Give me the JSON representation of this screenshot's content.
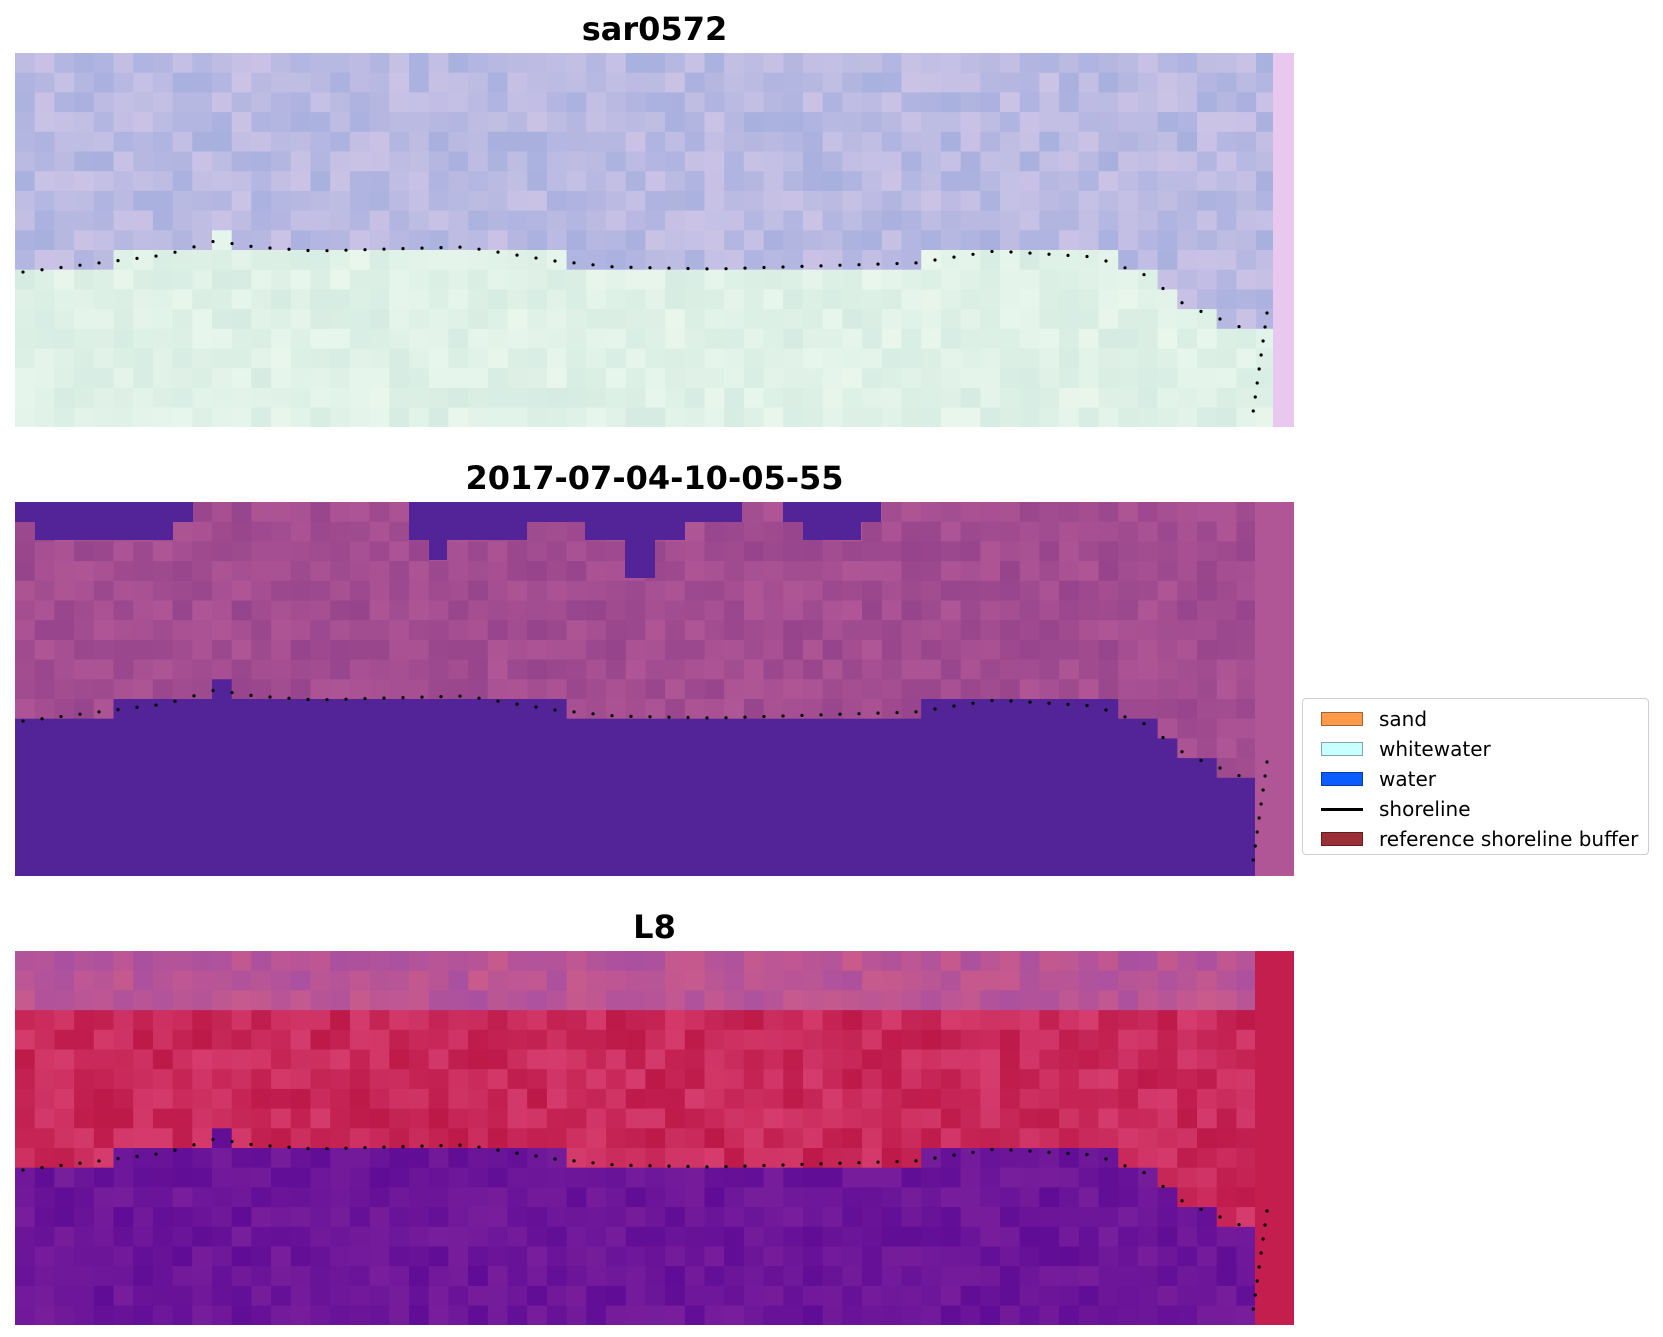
{
  "panels": [
    {
      "title": "sar0572"
    },
    {
      "title": "2017-07-04-10-05-55"
    },
    {
      "title": "L8"
    }
  ],
  "legend": {
    "items": [
      {
        "label": "sand",
        "kind": "patch",
        "color": "#ff9a4a"
      },
      {
        "label": "whitewater",
        "kind": "patch",
        "color": "#c8ffff"
      },
      {
        "label": "water",
        "kind": "patch",
        "color": "#0a5cff"
      },
      {
        "label": "shoreline",
        "kind": "line",
        "color": "#000000"
      },
      {
        "label": "reference shoreline buffer",
        "kind": "patch",
        "color": "#9a2f35"
      }
    ]
  }
}
